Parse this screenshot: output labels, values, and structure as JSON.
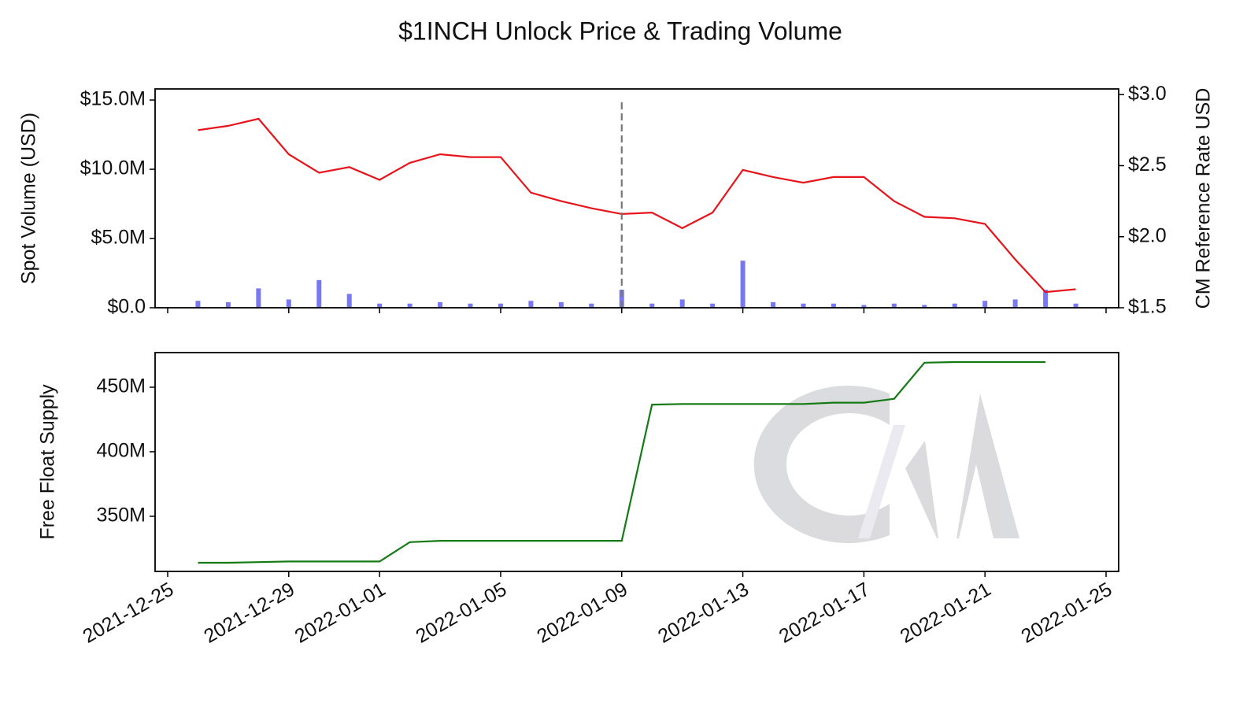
{
  "chart_data": [
    {
      "type": "bar_line",
      "title": "$1INCH Unlock Price & Trading Volume",
      "ylabel": "Spot Volume (USD)",
      "y2label": "CM Reference Rate USD",
      "x": [
        "2021-12-26",
        "2021-12-27",
        "2021-12-28",
        "2021-12-29",
        "2021-12-30",
        "2021-12-31",
        "2022-01-01",
        "2022-01-02",
        "2022-01-03",
        "2022-01-04",
        "2022-01-05",
        "2022-01-06",
        "2022-01-07",
        "2022-01-08",
        "2022-01-09",
        "2022-01-10",
        "2022-01-11",
        "2022-01-12",
        "2022-01-13",
        "2022-01-14",
        "2022-01-15",
        "2022-01-16",
        "2022-01-17",
        "2022-01-18",
        "2022-01-19",
        "2022-01-20",
        "2022-01-21",
        "2022-01-22",
        "2022-01-23",
        "2022-01-24"
      ],
      "series": [
        {
          "type": "bar",
          "axis": "y",
          "color": "#6060f0",
          "values": [
            500000,
            400000,
            1400000,
            600000,
            2000000,
            1000000,
            300000,
            300000,
            400000,
            300000,
            300000,
            500000,
            400000,
            300000,
            1300000,
            300000,
            600000,
            300000,
            3400000,
            400000,
            300000,
            300000,
            200000,
            300000,
            200000,
            300000,
            500000,
            600000,
            1300000,
            300000
          ]
        },
        {
          "type": "line",
          "axis": "y2",
          "color": "#e8141b",
          "values": [
            2.75,
            2.78,
            2.83,
            2.58,
            2.45,
            2.49,
            2.4,
            2.52,
            2.58,
            2.56,
            2.56,
            2.31,
            2.25,
            2.2,
            2.16,
            2.17,
            2.06,
            2.17,
            2.47,
            2.42,
            2.38,
            2.42,
            2.42,
            2.25,
            2.14,
            2.13,
            2.09,
            1.84,
            1.61,
            1.63
          ]
        }
      ],
      "vline": "2022-01-09",
      "xlim": [
        "2021-12-25",
        "2022-01-25"
      ],
      "xticks": [
        "2021-12-25",
        "2021-12-29",
        "2022-01-01",
        "2022-01-05",
        "2022-01-09",
        "2022-01-13",
        "2022-01-17",
        "2022-01-21",
        "2022-01-25"
      ],
      "ylim": [
        0,
        15800000
      ],
      "yticks": [
        {
          "value": 0,
          "label": "$0.0"
        },
        {
          "value": 5000000,
          "label": "$5.0M"
        },
        {
          "value": 10000000,
          "label": "$10.0M"
        },
        {
          "value": 15000000,
          "label": "$15.0M"
        }
      ],
      "y2lim": [
        1.5,
        3.04
      ],
      "y2ticks": [
        {
          "value": 1.5,
          "label": "$1.5"
        },
        {
          "value": 2.0,
          "label": "$2.0"
        },
        {
          "value": 2.5,
          "label": "$2.5"
        },
        {
          "value": 3.0,
          "label": "$3.0"
        }
      ]
    },
    {
      "type": "line",
      "ylabel": "Free Float Supply",
      "x": [
        "2021-12-26",
        "2021-12-27",
        "2021-12-28",
        "2021-12-29",
        "2021-12-30",
        "2021-12-31",
        "2022-01-01",
        "2022-01-02",
        "2022-01-03",
        "2022-01-04",
        "2022-01-05",
        "2022-01-06",
        "2022-01-07",
        "2022-01-08",
        "2022-01-09",
        "2022-01-10",
        "2022-01-11",
        "2022-01-12",
        "2022-01-13",
        "2022-01-14",
        "2022-01-15",
        "2022-01-16",
        "2022-01-17",
        "2022-01-18",
        "2022-01-19",
        "2022-01-20",
        "2022-01-21",
        "2022-01-22",
        "2022-01-23"
      ],
      "series": [
        {
          "color": "#147a14",
          "values": [
            314000000,
            314000000,
            314500000,
            315000000,
            315000000,
            315000000,
            315000000,
            330000000,
            331000000,
            331000000,
            331000000,
            331000000,
            331000000,
            331000000,
            331000000,
            436500000,
            437000000,
            437000000,
            437000000,
            437000000,
            437000000,
            438000000,
            438000000,
            441000000,
            469000000,
            469500000,
            469500000,
            469500000,
            469500000
          ]
        }
      ],
      "xlim": [
        "2021-12-25",
        "2022-01-25"
      ],
      "xticks": [
        "2021-12-25",
        "2021-12-29",
        "2022-01-01",
        "2022-01-05",
        "2022-01-09",
        "2022-01-13",
        "2022-01-17",
        "2022-01-21",
        "2022-01-25"
      ],
      "ylim": [
        307300000,
        476800000
      ],
      "yticks": [
        {
          "value": 350000000,
          "label": "350M"
        },
        {
          "value": 400000000,
          "label": "400M"
        },
        {
          "value": 450000000,
          "label": "450M"
        }
      ]
    }
  ]
}
